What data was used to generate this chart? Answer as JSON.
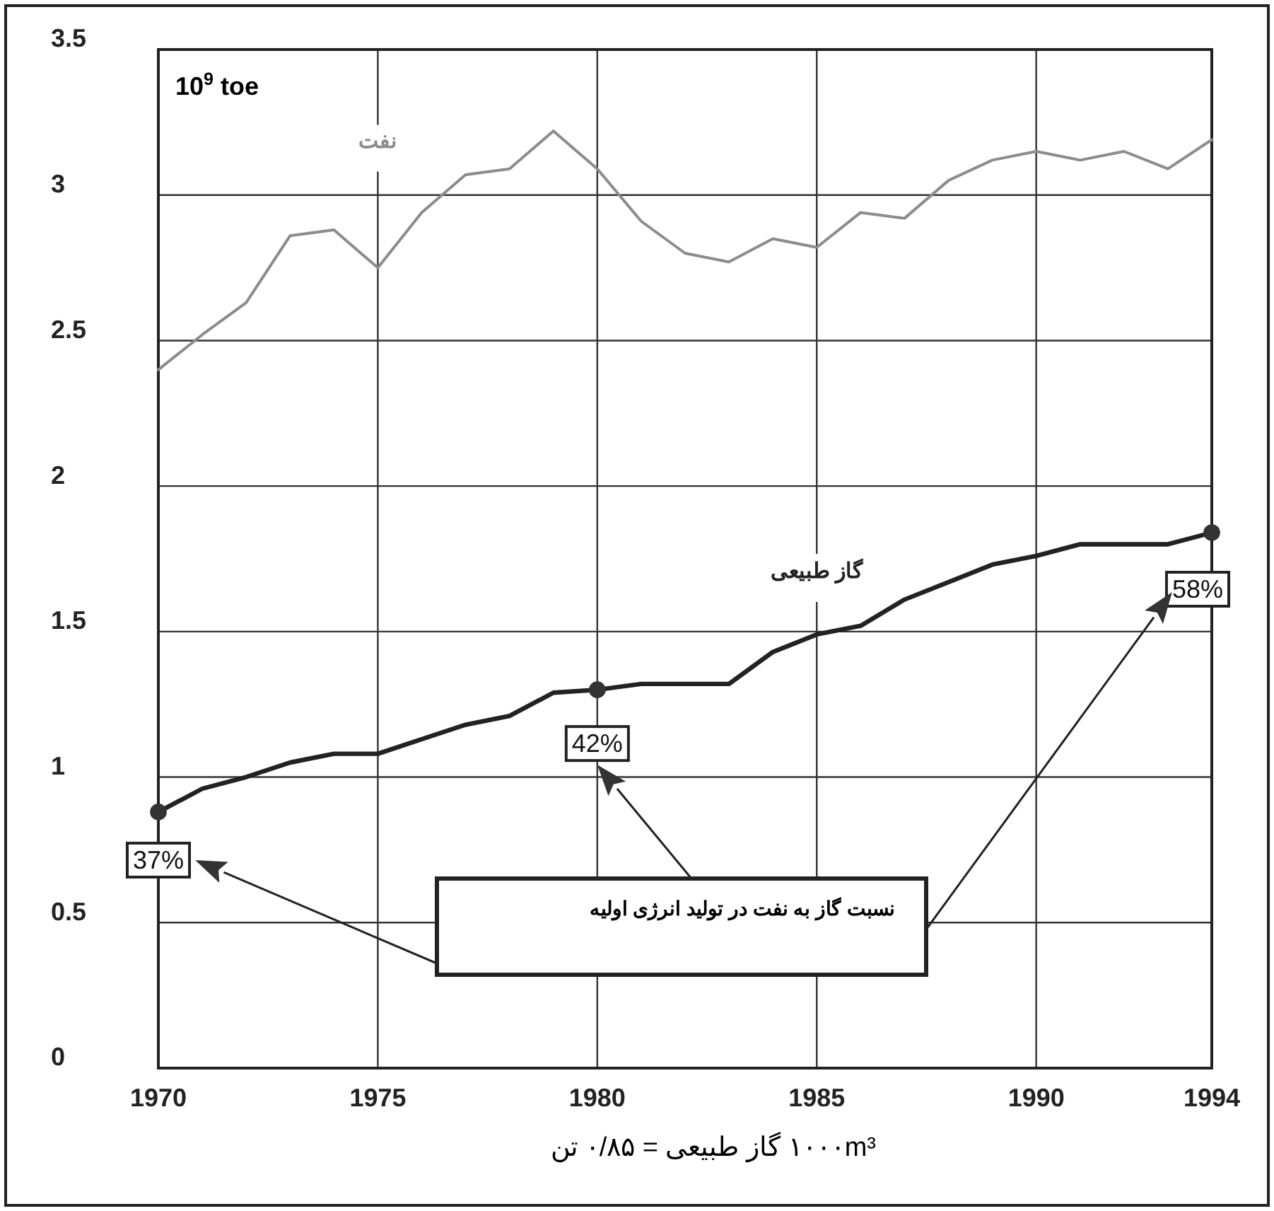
{
  "chart_data": {
    "type": "line",
    "ylabel": "10$^{9}$ toe",
    "xlabel": "۱۰۰۰m³ گاز طبیعی = ۰/۸۵ تن",
    "x": [
      1970,
      1971,
      1972,
      1973,
      1974,
      1975,
      1976,
      1977,
      1978,
      1979,
      1980,
      1981,
      1982,
      1983,
      1984,
      1985,
      1986,
      1987,
      1988,
      1989,
      1990,
      1991,
      1992,
      1993,
      1994
    ],
    "series": [
      {
        "name": "نفت",
        "color": "#8c8c8c",
        "values": [
          2.4,
          2.52,
          2.63,
          2.86,
          2.88,
          2.75,
          2.94,
          3.07,
          3.09,
          3.22,
          3.09,
          2.91,
          2.8,
          2.77,
          2.85,
          2.82,
          2.94,
          2.92,
          3.05,
          3.12,
          3.15,
          3.12,
          3.15,
          3.09,
          3.19
        ]
      },
      {
        "name": "گاز طبیعی",
        "color": "#222222",
        "values": [
          0.88,
          0.96,
          1.0,
          1.05,
          1.08,
          1.08,
          1.13,
          1.18,
          1.21,
          1.29,
          1.3,
          1.32,
          1.32,
          1.32,
          1.43,
          1.49,
          1.52,
          1.61,
          1.67,
          1.73,
          1.76,
          1.8,
          1.8,
          1.8,
          1.84
        ]
      },
      {
        "type": "scatter",
        "color": "#333333",
        "marker": "circle",
        "x": [
          1970,
          1980,
          1994
        ],
        "values": [
          0.88,
          1.3,
          1.84
        ]
      }
    ],
    "xlim": [
      1970,
      1994
    ],
    "xticks": [
      1970,
      1975,
      1980,
      1985,
      1990,
      1994
    ],
    "ylim": [
      0,
      3.5
    ],
    "yticks": [
      0,
      0.5,
      1,
      1.5,
      2,
      2.5,
      3,
      3.5
    ],
    "grid": true,
    "marker": "none",
    "line_style": "solid",
    "annotations": [
      {
        "text": "37%",
        "x": 1970,
        "y": 0.88
      },
      {
        "text": "42%",
        "x": 1980,
        "y": 1.3
      },
      {
        "text": "58%",
        "x": 1994,
        "y": 1.84
      },
      "نسبت گاز به نفت در تولید انرژی اولیه"
    ]
  }
}
